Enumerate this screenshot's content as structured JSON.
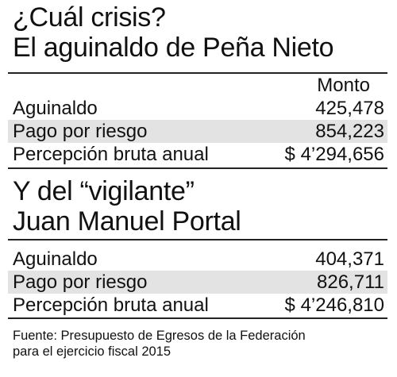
{
  "section1": {
    "title_line1": "¿Cuál crisis?",
    "title_line2": "El aguinaldo de Peña Nieto",
    "column_header": "Monto",
    "rows": [
      {
        "label": "Aguinaldo",
        "value": "425,478"
      },
      {
        "label": "Pago por riesgo",
        "value": "854,223"
      },
      {
        "label": "Percepción bruta anual",
        "value": "$ 4’294,656"
      }
    ]
  },
  "section2": {
    "title_line1": "Y del “vigilante”",
    "title_line2": "Juan Manuel Portal",
    "rows": [
      {
        "label": "Aguinaldo",
        "value": "404,371"
      },
      {
        "label": "Pago por riesgo",
        "value": "826,711"
      },
      {
        "label": "Percepción bruta anual",
        "value": "$ 4’246,810"
      }
    ]
  },
  "source": {
    "line1": "Fuente: Presupuesto de Egresos de la Federación",
    "line2": "para el ejercicio fiscal 2015"
  },
  "colors": {
    "shaded_row": "#e3e3e3",
    "rule": "#222222",
    "text": "#111111"
  }
}
